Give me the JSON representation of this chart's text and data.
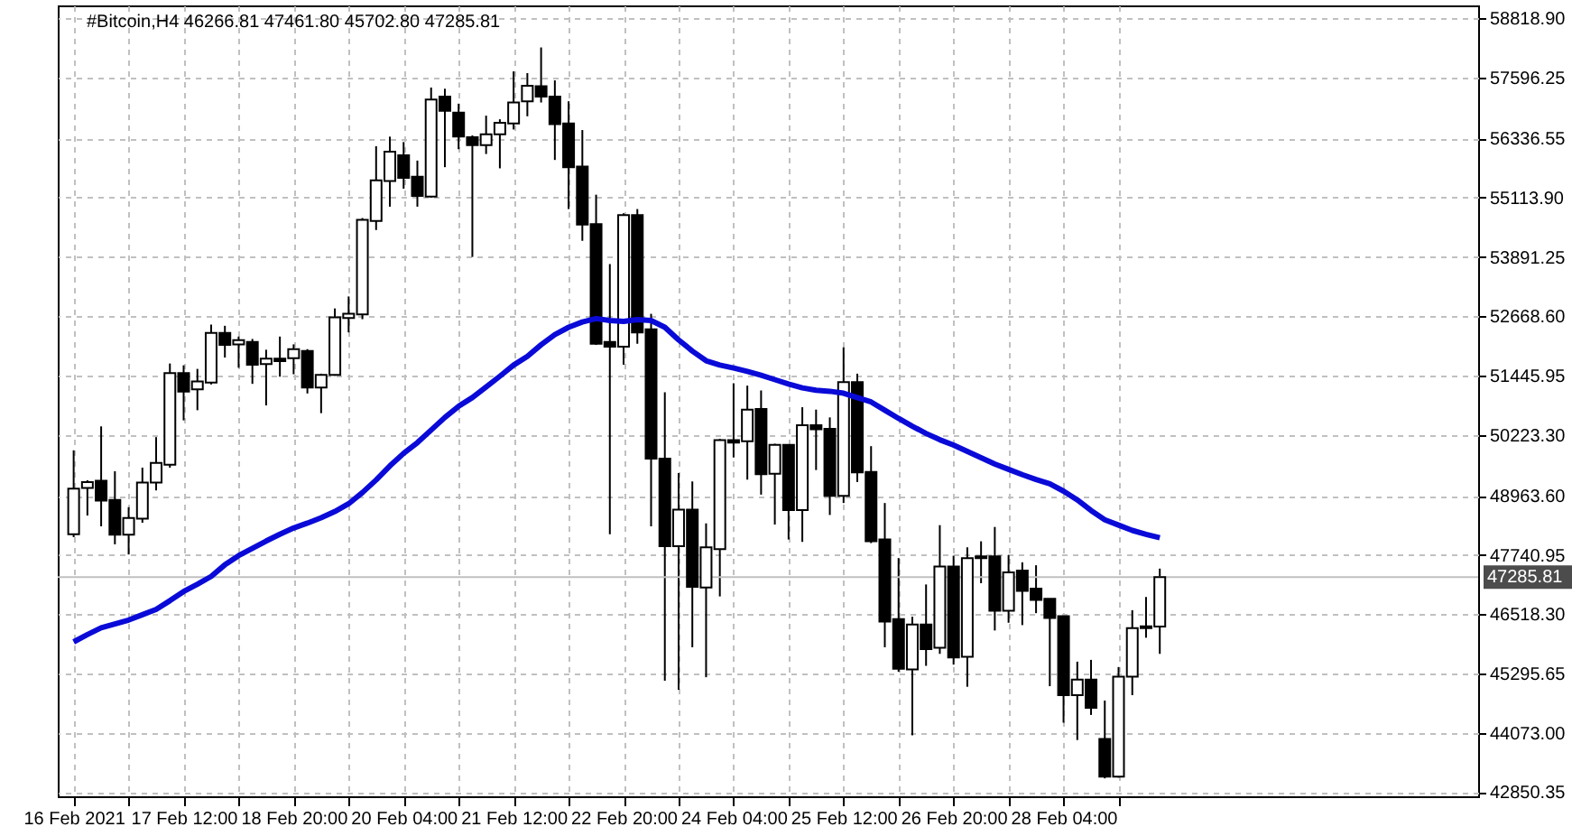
{
  "chart_data": {
    "type": "candlestick",
    "title": "#Bitcoin,H4  46266.81 47461.80 45702.80 47285.81",
    "categories": [
      "16 Feb 2021",
      null,
      null,
      null,
      null,
      null,
      null,
      null,
      "17 Feb 12:00",
      null,
      null,
      null,
      null,
      null,
      null,
      null,
      "18 Feb 20:00",
      null,
      null,
      null,
      null,
      null,
      null,
      null,
      "20 Feb 04:00",
      null,
      null,
      null,
      null,
      null,
      null,
      null,
      "21 Feb 12:00",
      null,
      null,
      null,
      null,
      null,
      null,
      null,
      "22 Feb 20:00",
      null,
      null,
      null,
      null,
      null,
      null,
      null,
      "24 Feb 04:00",
      null,
      null,
      null,
      null,
      null,
      null,
      null,
      "25 Feb 12:00",
      null,
      null,
      null,
      null,
      null,
      null,
      null,
      "26 Feb 20:00",
      null,
      null,
      null,
      null,
      null,
      null,
      null,
      "28 Feb 04:00",
      null,
      null,
      null,
      null,
      null,
      null,
      null
    ],
    "ohlc": [
      [
        48173,
        49902,
        48111,
        49112
      ],
      [
        49124,
        49285,
        48556,
        49248
      ],
      [
        49272,
        50396,
        48334,
        48865
      ],
      [
        48877,
        49470,
        47963,
        48161
      ],
      [
        48161,
        48729,
        47753,
        48507
      ],
      [
        48494,
        49544,
        48408,
        49235
      ],
      [
        49235,
        50174,
        49075,
        49643
      ],
      [
        49606,
        51693,
        49544,
        51495
      ],
      [
        51495,
        51656,
        50520,
        51112
      ],
      [
        51162,
        51582,
        50729,
        51322
      ],
      [
        51298,
        52496,
        51261,
        52323
      ],
      [
        52323,
        52471,
        51816,
        52076
      ],
      [
        52088,
        52249,
        51606,
        52175
      ],
      [
        52138,
        52199,
        51273,
        51668
      ],
      [
        51681,
        51977,
        50828,
        51792
      ],
      [
        51792,
        52249,
        51421,
        51743
      ],
      [
        51804,
        52088,
        51471,
        51989
      ],
      [
        51952,
        51989,
        51075,
        51199
      ],
      [
        51199,
        51483,
        50668,
        51458
      ],
      [
        51458,
        52829,
        51440,
        52644
      ],
      [
        52631,
        53076,
        52335,
        52718
      ],
      [
        52705,
        54694,
        52607,
        54657
      ],
      [
        54632,
        56176,
        54447,
        55472
      ],
      [
        55459,
        56373,
        54928,
        56065
      ],
      [
        55990,
        56262,
        55299,
        55521
      ],
      [
        55546,
        55879,
        54928,
        55151
      ],
      [
        55138,
        57386,
        55114,
        57139
      ],
      [
        57201,
        57361,
        55743,
        56904
      ],
      [
        56867,
        57053,
        56114,
        56373
      ],
      [
        56361,
        56398,
        53891,
        56200
      ],
      [
        56200,
        56806,
        56015,
        56423
      ],
      [
        56423,
        56731,
        55719,
        56657
      ],
      [
        56645,
        57719,
        56521,
        57077
      ],
      [
        57102,
        57683,
        56793,
        57423
      ],
      [
        57411,
        58213,
        57077,
        57201
      ],
      [
        57201,
        57534,
        55892,
        56633
      ],
      [
        56645,
        57102,
        54879,
        55743
      ],
      [
        55756,
        56509,
        54224,
        54558
      ],
      [
        54570,
        55175,
        52076,
        52100
      ],
      [
        52138,
        53743,
        48173,
        52038
      ],
      [
        52038,
        54792,
        51668,
        54755
      ],
      [
        54755,
        54879,
        52100,
        52335
      ],
      [
        52397,
        52718,
        48334,
        49729
      ],
      [
        49729,
        51100,
        45147,
        47926
      ],
      [
        47926,
        49433,
        44962,
        48679
      ],
      [
        48679,
        49260,
        45839,
        47086
      ],
      [
        47074,
        48395,
        45221,
        47901
      ],
      [
        47864,
        50137,
        46888,
        50112
      ],
      [
        50112,
        51285,
        49754,
        50062
      ],
      [
        50087,
        51236,
        49297,
        50742
      ],
      [
        50754,
        51137,
        48988,
        49408
      ],
      [
        49420,
        50038,
        48371,
        50013
      ],
      [
        50013,
        50013,
        48062,
        48667
      ],
      [
        48667,
        50791,
        48013,
        50421
      ],
      [
        50421,
        50742,
        49495,
        50334
      ],
      [
        50347,
        50581,
        48568,
        48963
      ],
      [
        48963,
        52026,
        48815,
        51310
      ],
      [
        51310,
        51483,
        49248,
        49445
      ],
      [
        49457,
        49988,
        47988,
        48025
      ],
      [
        48062,
        48815,
        45839,
        46370
      ],
      [
        46419,
        47679,
        45333,
        45394
      ],
      [
        45382,
        46469,
        44023,
        46308
      ],
      [
        46308,
        47135,
        45456,
        45802
      ],
      [
        45827,
        48358,
        45703,
        47506
      ],
      [
        47506,
        47728,
        45481,
        45629
      ],
      [
        45641,
        47901,
        45024,
        47679
      ],
      [
        47679,
        48025,
        47160,
        47716
      ],
      [
        47716,
        48321,
        46185,
        46592
      ],
      [
        46592,
        47741,
        46345,
        47382
      ],
      [
        47420,
        47592,
        46296,
        47000
      ],
      [
        47049,
        47531,
        46543,
        46814
      ],
      [
        46839,
        46839,
        45036,
        46444
      ],
      [
        46481,
        46481,
        44283,
        44851
      ],
      [
        44851,
        45542,
        43925,
        45172
      ],
      [
        45172,
        45579,
        44443,
        44591
      ],
      [
        43949,
        44740,
        43134,
        43171
      ],
      [
        43171,
        45431,
        43150,
        45234
      ],
      [
        45234,
        46604,
        44851,
        46234
      ],
      [
        46234,
        46876,
        46036,
        46271
      ],
      [
        46266.81,
        47461.8,
        45702.8,
        47285.81
      ]
    ],
    "series": [
      {
        "type": "line",
        "color": "#0a0ad8",
        "values": [
          45950,
          46100,
          46240,
          46320,
          46400,
          46510,
          46620,
          46800,
          46990,
          47140,
          47300,
          47540,
          47730,
          47880,
          48030,
          48170,
          48300,
          48400,
          48510,
          48640,
          48800,
          49030,
          49290,
          49580,
          49840,
          50060,
          50320,
          50580,
          50810,
          50990,
          51210,
          51430,
          51660,
          51840,
          52080,
          52290,
          52440,
          52550,
          52620,
          52580,
          52560,
          52600,
          52580,
          52440,
          52180,
          51950,
          51750,
          51660,
          51600,
          51530,
          51450,
          51360,
          51270,
          51190,
          51140,
          51120,
          51080,
          50990,
          50900,
          50730,
          50560,
          50400,
          50250,
          50120,
          50010,
          49880,
          49750,
          49620,
          49510,
          49400,
          49300,
          49210,
          49060,
          48880,
          48660,
          48470,
          48360,
          48250,
          48170,
          48100
        ]
      }
    ],
    "ylim": [
      42765,
      59080
    ],
    "yticks": [
      {
        "value": 42850.35,
        "label": "42850.35"
      },
      {
        "value": 44073.0,
        "label": "44073.00"
      },
      {
        "value": 45295.65,
        "label": "45295.65"
      },
      {
        "value": 46518.3,
        "label": "46518.30"
      },
      {
        "value": 47740.95,
        "label": "47740.95"
      },
      {
        "value": 48963.6,
        "label": "48963.60"
      },
      {
        "value": 50223.3,
        "label": "50223.30"
      },
      {
        "value": 51445.95,
        "label": "51445.95"
      },
      {
        "value": 52668.6,
        "label": "52668.60"
      },
      {
        "value": 53891.25,
        "label": "53891.25"
      },
      {
        "value": 55113.9,
        "label": "55113.90"
      },
      {
        "value": 56336.55,
        "label": "56336.55"
      },
      {
        "value": 57596.25,
        "label": "57596.25"
      },
      {
        "value": 58818.9,
        "label": "58818.90"
      }
    ],
    "grid": true,
    "ref_lines": [
      {
        "axis": "y",
        "value": 47285.81,
        "label": "47285.81",
        "color": "#c0c0c0"
      }
    ]
  }
}
